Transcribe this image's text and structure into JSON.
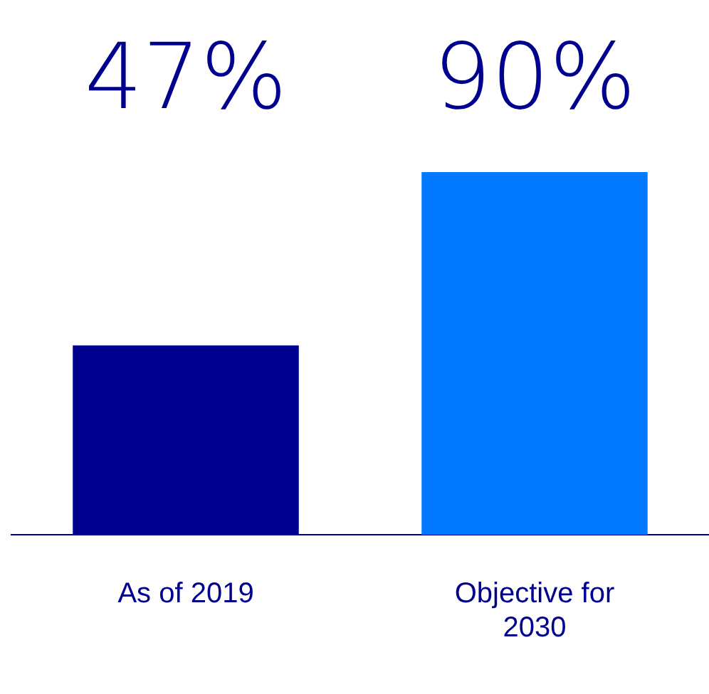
{
  "chart_data": {
    "type": "bar",
    "categories": [
      "As of 2019",
      "Objective for 2030"
    ],
    "values": [
      47,
      90
    ],
    "colors": [
      "#00008f",
      "#0078ff"
    ],
    "value_labels": [
      "47%",
      "90%"
    ]
  }
}
